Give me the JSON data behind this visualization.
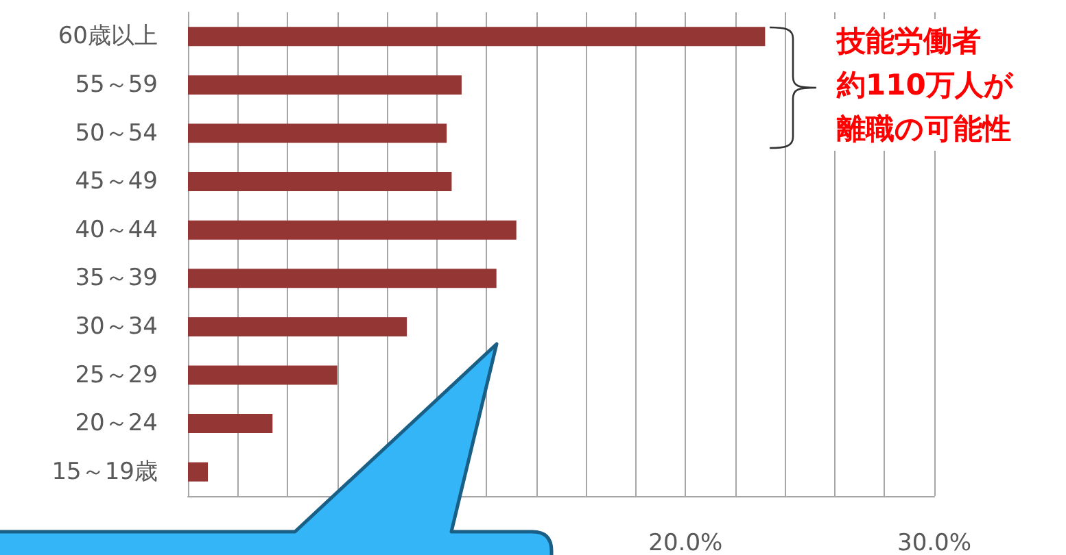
{
  "chart_data": {
    "type": "bar",
    "orientation": "horizontal",
    "categories": [
      "60歳以上",
      "55～59",
      "50～54",
      "45～49",
      "40～44",
      "35～39",
      "30～34",
      "25～29",
      "20～24",
      "15～19歳"
    ],
    "values": [
      23.2,
      11.0,
      10.4,
      10.6,
      13.2,
      12.4,
      8.8,
      6.0,
      3.4,
      0.8
    ],
    "color": "#943634",
    "xlim": [
      0,
      30
    ],
    "xticks": [
      {
        "value": 0,
        "label": null
      },
      {
        "value": 2,
        "label": null
      },
      {
        "value": 4,
        "label": null
      },
      {
        "value": 6,
        "label": null
      },
      {
        "value": 8,
        "label": null
      },
      {
        "value": 10,
        "label": null
      },
      {
        "value": 12,
        "label": null
      },
      {
        "value": 14,
        "label": null
      },
      {
        "value": 16,
        "label": null
      },
      {
        "value": 18,
        "label": null
      },
      {
        "value": 20,
        "label": "20.0%"
      },
      {
        "value": 22,
        "label": null
      },
      {
        "value": 24,
        "label": null
      },
      {
        "value": 26,
        "label": null
      },
      {
        "value": 28,
        "label": null
      },
      {
        "value": 30,
        "label": "30.0%"
      }
    ],
    "grid": "x",
    "annotations": [
      "技能労働者",
      "約110万人が",
      "離職の可能性"
    ]
  }
}
